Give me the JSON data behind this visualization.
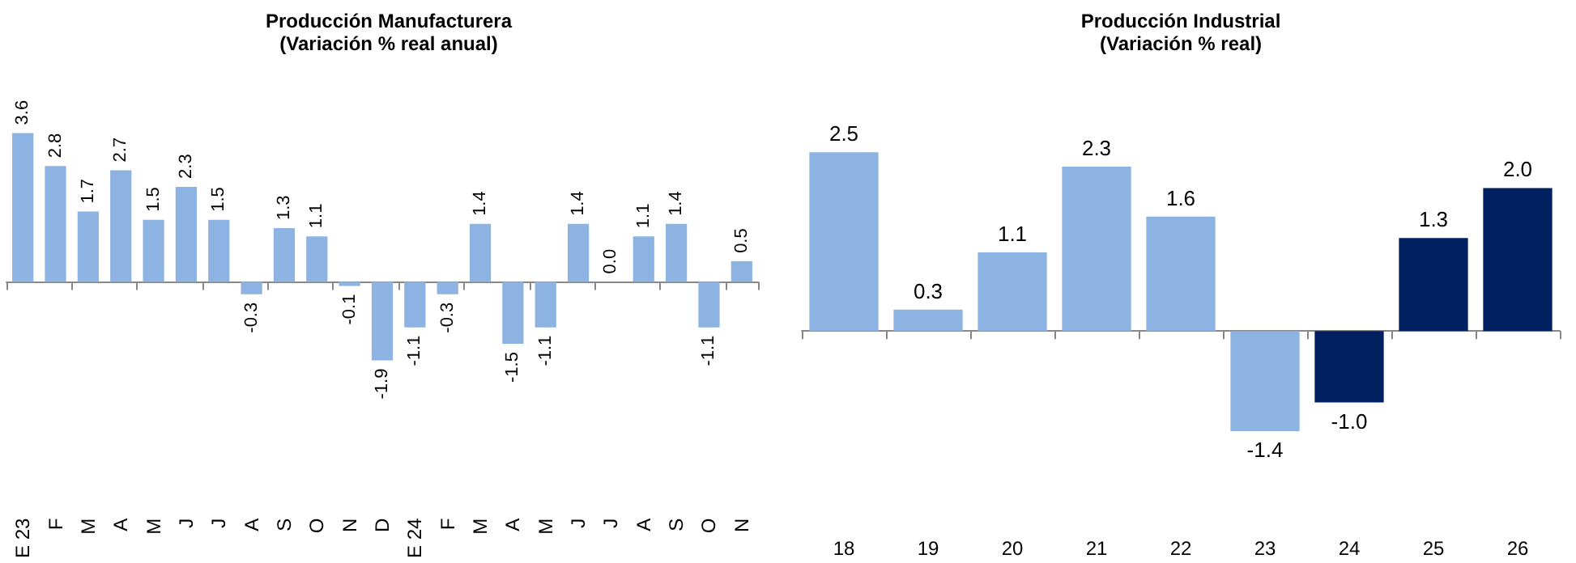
{
  "chart_data": [
    {
      "type": "bar",
      "title": "Producción Manufacturera",
      "subtitle": "(Variación % real anual)",
      "categories": [
        "E 23",
        "F",
        "M",
        "A",
        "M",
        "J",
        "J",
        "A",
        "S",
        "O",
        "N",
        "D",
        "E 24",
        "F",
        "M",
        "A",
        "M",
        "J",
        "J",
        "A",
        "S",
        "O",
        "N"
      ],
      "values": [
        3.6,
        2.8,
        1.7,
        2.7,
        1.5,
        2.3,
        1.5,
        -0.3,
        1.3,
        1.1,
        -0.1,
        -1.9,
        -1.1,
        -0.3,
        1.4,
        -1.5,
        -1.1,
        1.4,
        0.0,
        1.1,
        1.4,
        -1.1,
        0.5
      ],
      "value_labels": [
        "3.6",
        "2.8",
        "1.7",
        "2.7",
        "1.5",
        "2.3",
        "1.5",
        "-0.3",
        "1.3",
        "1.1",
        "-0.1",
        "-1.9",
        "-1.1",
        "-0.3",
        "1.4",
        "-1.5",
        "-1.1",
        "1.4",
        "0.0",
        "1.1",
        "1.4",
        "-1.1",
        "0.5"
      ],
      "colors": [
        "#8db3e2",
        "#8db3e2",
        "#8db3e2",
        "#8db3e2",
        "#8db3e2",
        "#8db3e2",
        "#8db3e2",
        "#8db3e2",
        "#8db3e2",
        "#8db3e2",
        "#8db3e2",
        "#8db3e2",
        "#8db3e2",
        "#8db3e2",
        "#8db3e2",
        "#8db3e2",
        "#8db3e2",
        "#8db3e2",
        "#8db3e2",
        "#8db3e2",
        "#8db3e2",
        "#8db3e2",
        "#8db3e2"
      ]
    },
    {
      "type": "bar",
      "title": "Producción Industrial",
      "subtitle": "(Variación % real)",
      "categories": [
        "18",
        "19",
        "20",
        "21",
        "22",
        "23",
        "24",
        "25",
        "26"
      ],
      "values": [
        2.5,
        0.3,
        1.1,
        2.3,
        1.6,
        -1.4,
        -1.0,
        1.3,
        2.0
      ],
      "value_labels": [
        "2.5",
        "0.3",
        "1.1",
        "2.3",
        "1.6",
        "-1.4",
        "-1.0",
        "1.3",
        "2.0"
      ],
      "colors": [
        "#8db3e2",
        "#8db3e2",
        "#8db3e2",
        "#8db3e2",
        "#8db3e2",
        "#8db3e2",
        "#002060",
        "#002060",
        "#002060"
      ]
    }
  ]
}
